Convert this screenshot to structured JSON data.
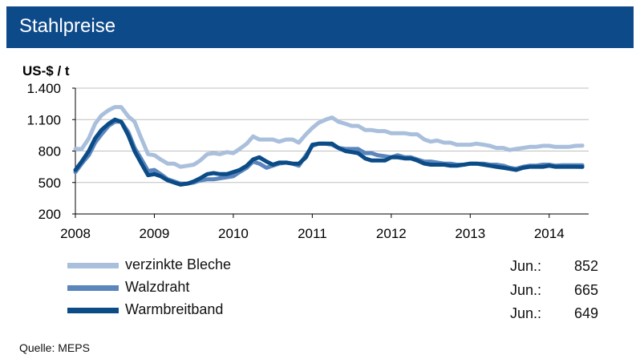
{
  "header": {
    "title": "Stahlpreise"
  },
  "source": "Quelle:  MEPS",
  "colors": {
    "header": "#0d4a8a",
    "verzinkte_bleche": "#a9bfdc",
    "walzdraht": "#5b86bd",
    "warmbreitband": "#0b4b86",
    "grid": "#bfbfbf"
  },
  "legend": [
    {
      "label": "verzinkte Bleche",
      "month": "Jun.:",
      "value": "852"
    },
    {
      "label": "Walzdraht",
      "month": "Jun.:",
      "value": "665"
    },
    {
      "label": "Warmbreitband",
      "month": "Jun.:",
      "value": "649"
    }
  ],
  "chart_data": {
    "type": "line",
    "ylabel": "US-$ / t",
    "ylim": [
      200,
      1400
    ],
    "yticks": [
      200,
      500,
      800,
      1100,
      1400
    ],
    "ytick_labels": [
      "200",
      "500",
      "800",
      "1.100",
      "1.400"
    ],
    "xlim": [
      2008,
      2014.5
    ],
    "xticks": [
      2008,
      2009,
      2010,
      2011,
      2012,
      2013,
      2014
    ],
    "xtick_labels": [
      "2008",
      "2009",
      "2010",
      "2011",
      "2012",
      "2013",
      "2014"
    ],
    "grid": true,
    "series": [
      {
        "name": "verzinkte Bleche",
        "x": [
          2008.0,
          2008.08,
          2008.17,
          2008.25,
          2008.33,
          2008.42,
          2008.5,
          2008.58,
          2008.67,
          2008.75,
          2008.83,
          2008.92,
          2009.0,
          2009.08,
          2009.17,
          2009.25,
          2009.33,
          2009.42,
          2009.5,
          2009.58,
          2009.67,
          2009.75,
          2009.83,
          2009.92,
          2010.0,
          2010.08,
          2010.17,
          2010.25,
          2010.33,
          2010.42,
          2010.5,
          2010.58,
          2010.67,
          2010.75,
          2010.83,
          2010.92,
          2011.0,
          2011.08,
          2011.17,
          2011.25,
          2011.33,
          2011.42,
          2011.5,
          2011.58,
          2011.67,
          2011.75,
          2011.83,
          2011.92,
          2012.0,
          2012.08,
          2012.17,
          2012.25,
          2012.33,
          2012.42,
          2012.5,
          2012.58,
          2012.67,
          2012.75,
          2012.83,
          2012.92,
          2013.0,
          2013.08,
          2013.17,
          2013.25,
          2013.33,
          2013.42,
          2013.5,
          2013.58,
          2013.67,
          2013.75,
          2013.83,
          2013.92,
          2014.0,
          2014.08,
          2014.17,
          2014.25,
          2014.33,
          2014.42
        ],
        "values": [
          820,
          820,
          920,
          1060,
          1140,
          1190,
          1220,
          1220,
          1130,
          1080,
          930,
          770,
          760,
          720,
          680,
          680,
          650,
          660,
          670,
          710,
          770,
          780,
          770,
          790,
          780,
          820,
          870,
          940,
          910,
          910,
          910,
          890,
          910,
          910,
          880,
          960,
          1020,
          1070,
          1100,
          1120,
          1080,
          1060,
          1040,
          1040,
          1000,
          1000,
          990,
          990,
          970,
          970,
          970,
          960,
          960,
          910,
          890,
          900,
          880,
          880,
          860,
          860,
          860,
          870,
          860,
          850,
          830,
          830,
          810,
          820,
          830,
          840,
          840,
          850,
          850,
          840,
          840,
          840,
          850,
          852
        ]
      },
      {
        "name": "Walzdraht",
        "x": [
          2008.0,
          2008.08,
          2008.17,
          2008.25,
          2008.33,
          2008.42,
          2008.5,
          2008.58,
          2008.67,
          2008.75,
          2008.83,
          2008.92,
          2009.0,
          2009.08,
          2009.17,
          2009.25,
          2009.33,
          2009.42,
          2009.5,
          2009.58,
          2009.67,
          2009.75,
          2009.83,
          2009.92,
          2010.0,
          2010.08,
          2010.17,
          2010.25,
          2010.33,
          2010.42,
          2010.5,
          2010.58,
          2010.67,
          2010.75,
          2010.83,
          2010.92,
          2011.0,
          2011.08,
          2011.17,
          2011.25,
          2011.33,
          2011.42,
          2011.5,
          2011.58,
          2011.67,
          2011.75,
          2011.83,
          2011.92,
          2012.0,
          2012.08,
          2012.17,
          2012.25,
          2012.33,
          2012.42,
          2012.5,
          2012.58,
          2012.67,
          2012.75,
          2012.83,
          2012.92,
          2013.0,
          2013.08,
          2013.17,
          2013.25,
          2013.33,
          2013.42,
          2013.5,
          2013.58,
          2013.67,
          2013.75,
          2013.83,
          2013.92,
          2014.0,
          2014.08,
          2014.17,
          2014.25,
          2014.33,
          2014.42
        ],
        "values": [
          600,
          680,
          760,
          880,
          960,
          1040,
          1080,
          1080,
          980,
          830,
          730,
          610,
          620,
          580,
          530,
          510,
          490,
          490,
          500,
          520,
          530,
          530,
          540,
          550,
          560,
          600,
          640,
          700,
          680,
          640,
          660,
          680,
          690,
          680,
          660,
          760,
          850,
          870,
          870,
          860,
          830,
          820,
          820,
          820,
          780,
          780,
          760,
          750,
          740,
          760,
          740,
          740,
          720,
          700,
          700,
          690,
          680,
          680,
          670,
          670,
          680,
          680,
          680,
          670,
          670,
          660,
          640,
          630,
          650,
          660,
          660,
          670,
          670,
          660,
          665,
          665,
          665,
          665
        ]
      },
      {
        "name": "Warmbreitband",
        "x": [
          2008.0,
          2008.08,
          2008.17,
          2008.25,
          2008.33,
          2008.42,
          2008.5,
          2008.58,
          2008.67,
          2008.75,
          2008.83,
          2008.92,
          2009.0,
          2009.08,
          2009.17,
          2009.25,
          2009.33,
          2009.42,
          2009.5,
          2009.58,
          2009.67,
          2009.75,
          2009.83,
          2009.92,
          2010.0,
          2010.08,
          2010.17,
          2010.25,
          2010.33,
          2010.42,
          2010.5,
          2010.58,
          2010.67,
          2010.75,
          2010.83,
          2010.92,
          2011.0,
          2011.08,
          2011.17,
          2011.25,
          2011.33,
          2011.42,
          2011.5,
          2011.58,
          2011.67,
          2011.75,
          2011.83,
          2011.92,
          2012.0,
          2012.08,
          2012.17,
          2012.25,
          2012.33,
          2012.42,
          2012.5,
          2012.58,
          2012.67,
          2012.75,
          2012.83,
          2012.92,
          2013.0,
          2013.08,
          2013.17,
          2013.25,
          2013.33,
          2013.42,
          2013.5,
          2013.58,
          2013.67,
          2013.75,
          2013.83,
          2013.92,
          2014.0,
          2014.08,
          2014.17,
          2014.25,
          2014.33,
          2014.42
        ],
        "values": [
          620,
          700,
          800,
          920,
          1000,
          1060,
          1100,
          1080,
          950,
          800,
          690,
          570,
          580,
          560,
          520,
          500,
          480,
          490,
          510,
          540,
          580,
          590,
          580,
          580,
          600,
          620,
          660,
          720,
          740,
          700,
          670,
          690,
          690,
          680,
          680,
          740,
          860,
          870,
          870,
          870,
          830,
          800,
          790,
          780,
          730,
          710,
          710,
          710,
          740,
          740,
          730,
          730,
          710,
          680,
          670,
          670,
          670,
          660,
          660,
          670,
          680,
          680,
          670,
          660,
          650,
          640,
          630,
          620,
          640,
          650,
          650,
          650,
          660,
          650,
          650,
          650,
          650,
          649
        ]
      }
    ]
  }
}
